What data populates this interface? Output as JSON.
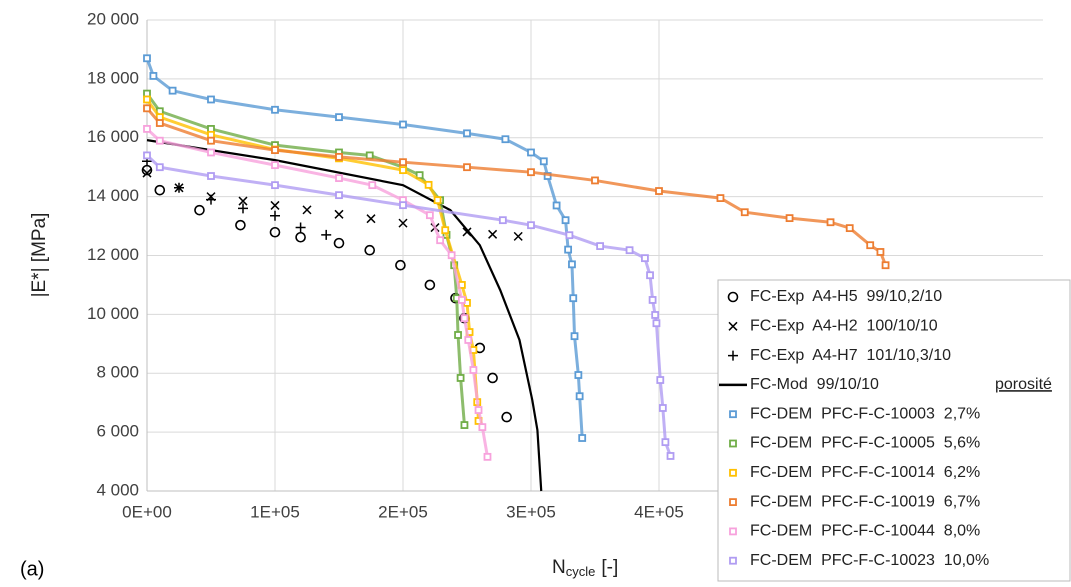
{
  "chart_data": {
    "type": "scatter",
    "y_label": "|E*| [MPa]",
    "x_label": "N",
    "x_label_subscript": "cycle",
    "x_label_unit": "[-]",
    "panel_label": "(a)",
    "legend_header": "porosité",
    "xlim": [
      0,
      700000
    ],
    "ylim": [
      4000,
      20000
    ],
    "xticks": [
      {
        "value": 0,
        "label": "0E+00"
      },
      {
        "value": 100000,
        "label": "1E+05"
      },
      {
        "value": 200000,
        "label": "2E+05"
      },
      {
        "value": 300000,
        "label": "3E+05"
      },
      {
        "value": 400000,
        "label": "4E+05"
      }
    ],
    "yticks": [
      {
        "value": 4000,
        "label": "4 000"
      },
      {
        "value": 6000,
        "label": "6 000"
      },
      {
        "value": 8000,
        "label": "8 000"
      },
      {
        "value": 10000,
        "label": "10 000"
      },
      {
        "value": 12000,
        "label": "12 000"
      },
      {
        "value": 14000,
        "label": "14 000"
      },
      {
        "value": 16000,
        "label": "16 000"
      },
      {
        "value": 18000,
        "label": "18 000"
      },
      {
        "value": 20000,
        "label": "20 000"
      }
    ],
    "grid": true,
    "series": [
      {
        "name": "FC-Exp  A4-H5  99/10,2/10",
        "color": "#000000",
        "marker": "circle",
        "x": [
          0,
          10000,
          41000,
          73000,
          100000,
          120000,
          150000,
          174000,
          198000,
          221000,
          241000,
          248000,
          260000,
          270000,
          281000
        ],
        "values": [
          14900,
          14220,
          13540,
          13030,
          12790,
          12620,
          12420,
          12180,
          11670,
          11000,
          10550,
          9870,
          8860,
          7840,
          6510
        ]
      },
      {
        "name": "FC-Exp  A4-H2  100/10/10",
        "color": "#000000",
        "marker": "cross",
        "x": [
          0,
          25000,
          50000,
          75000,
          100000,
          125000,
          150000,
          175000,
          200000,
          225000,
          250000,
          270000,
          290000
        ],
        "values": [
          14800,
          14300,
          14000,
          13850,
          13700,
          13550,
          13400,
          13250,
          13100,
          12950,
          12800,
          12720,
          12650
        ]
      },
      {
        "name": "FC-Exp  A4-H7  101/10,3/10",
        "color": "#000000",
        "marker": "plus",
        "x": [
          0,
          25000,
          50000,
          75000,
          100000,
          120000,
          140000
        ],
        "values": [
          15200,
          14300,
          13900,
          13600,
          13350,
          12950,
          12700
        ]
      },
      {
        "name": "FC-Mod  99/10/10",
        "color": "#000000",
        "marker": "line",
        "x": [
          0,
          100000,
          200000,
          237000,
          260000,
          276000,
          291000,
          301000,
          305000,
          308000
        ],
        "values": [
          15920,
          15240,
          14390,
          13540,
          12350,
          10820,
          9130,
          7090,
          6070,
          4000
        ]
      },
      {
        "name": "FC-DEM  PFC-F-C-10003  2,7%",
        "color": "#5b9bd5",
        "marker": "square",
        "x": [
          0,
          5000,
          20000,
          50000,
          100000,
          150000,
          200000,
          250000,
          280000,
          300000,
          310000,
          313000,
          320000,
          327000,
          329000,
          332000,
          333000,
          334000,
          337000,
          338000,
          340000
        ],
        "values": [
          18700,
          18100,
          17600,
          17300,
          16950,
          16700,
          16450,
          16150,
          15950,
          15500,
          15200,
          14700,
          13700,
          13200,
          12200,
          11700,
          10550,
          9260,
          7940,
          7220,
          5800
        ]
      },
      {
        "name": "FC-DEM  PFC-F-C-10005  5,6%",
        "color": "#70ad47",
        "marker": "square",
        "x": [
          0,
          10000,
          50000,
          100000,
          150000,
          174000,
          200000,
          213000,
          229000,
          234000,
          240000,
          242000,
          243000,
          245000,
          248000
        ],
        "values": [
          17500,
          16900,
          16300,
          15750,
          15500,
          15400,
          15000,
          14730,
          13880,
          12700,
          11670,
          10550,
          9300,
          7840,
          6240
        ]
      },
      {
        "name": "FC-DEM  PFC-F-C-10014  6,2%",
        "color": "#ffc000",
        "marker": "square",
        "x": [
          0,
          10000,
          50000,
          100000,
          150000,
          200000,
          220000,
          227000,
          233000,
          246000,
          250000,
          252000,
          255000,
          258000,
          259000
        ],
        "values": [
          17300,
          16700,
          16100,
          15600,
          15300,
          14900,
          14400,
          13880,
          12860,
          11000,
          10390,
          9400,
          8790,
          7020,
          6380
        ]
      },
      {
        "name": "FC-DEM  PFC-F-C-10019  6,7%",
        "color": "#ed7d31",
        "marker": "square",
        "x": [
          0,
          10000,
          50000,
          100000,
          150000,
          200000,
          250000,
          300000,
          350000,
          400000,
          448000,
          467000,
          502000,
          534000,
          549000,
          565000,
          573000,
          577000
        ],
        "values": [
          17000,
          16500,
          15900,
          15580,
          15350,
          15170,
          15000,
          14830,
          14550,
          14190,
          13950,
          13470,
          13270,
          13130,
          12930,
          12350,
          12120,
          11670
        ]
      },
      {
        "name": "FC-DEM  PFC-F-C-10044  8,0%",
        "color": "#f7a1dc",
        "marker": "square",
        "x": [
          0,
          10000,
          50000,
          100000,
          150000,
          176000,
          200000,
          221000,
          229000,
          238000,
          246000,
          248000,
          251000,
          255000,
          259000,
          262000,
          266000
        ],
        "values": [
          16300,
          15900,
          15500,
          15070,
          14630,
          14390,
          13880,
          13370,
          12520,
          12010,
          10490,
          9870,
          9130,
          8110,
          6750,
          6170,
          5160
        ]
      },
      {
        "name": "FC-DEM  PFC-F-C-10023  10,0%",
        "color": "#b09cf2",
        "marker": "square",
        "x": [
          0,
          10000,
          50000,
          100000,
          150000,
          200000,
          278000,
          300000,
          330000,
          354000,
          377000,
          389000,
          393000,
          395000,
          397000,
          398000,
          401000,
          403000,
          405000,
          409000
        ],
        "values": [
          15400,
          15000,
          14700,
          14390,
          14050,
          13710,
          13200,
          13030,
          12690,
          12320,
          12180,
          11910,
          11330,
          10490,
          9980,
          9700,
          7770,
          6820,
          5660,
          5190
        ]
      }
    ]
  }
}
